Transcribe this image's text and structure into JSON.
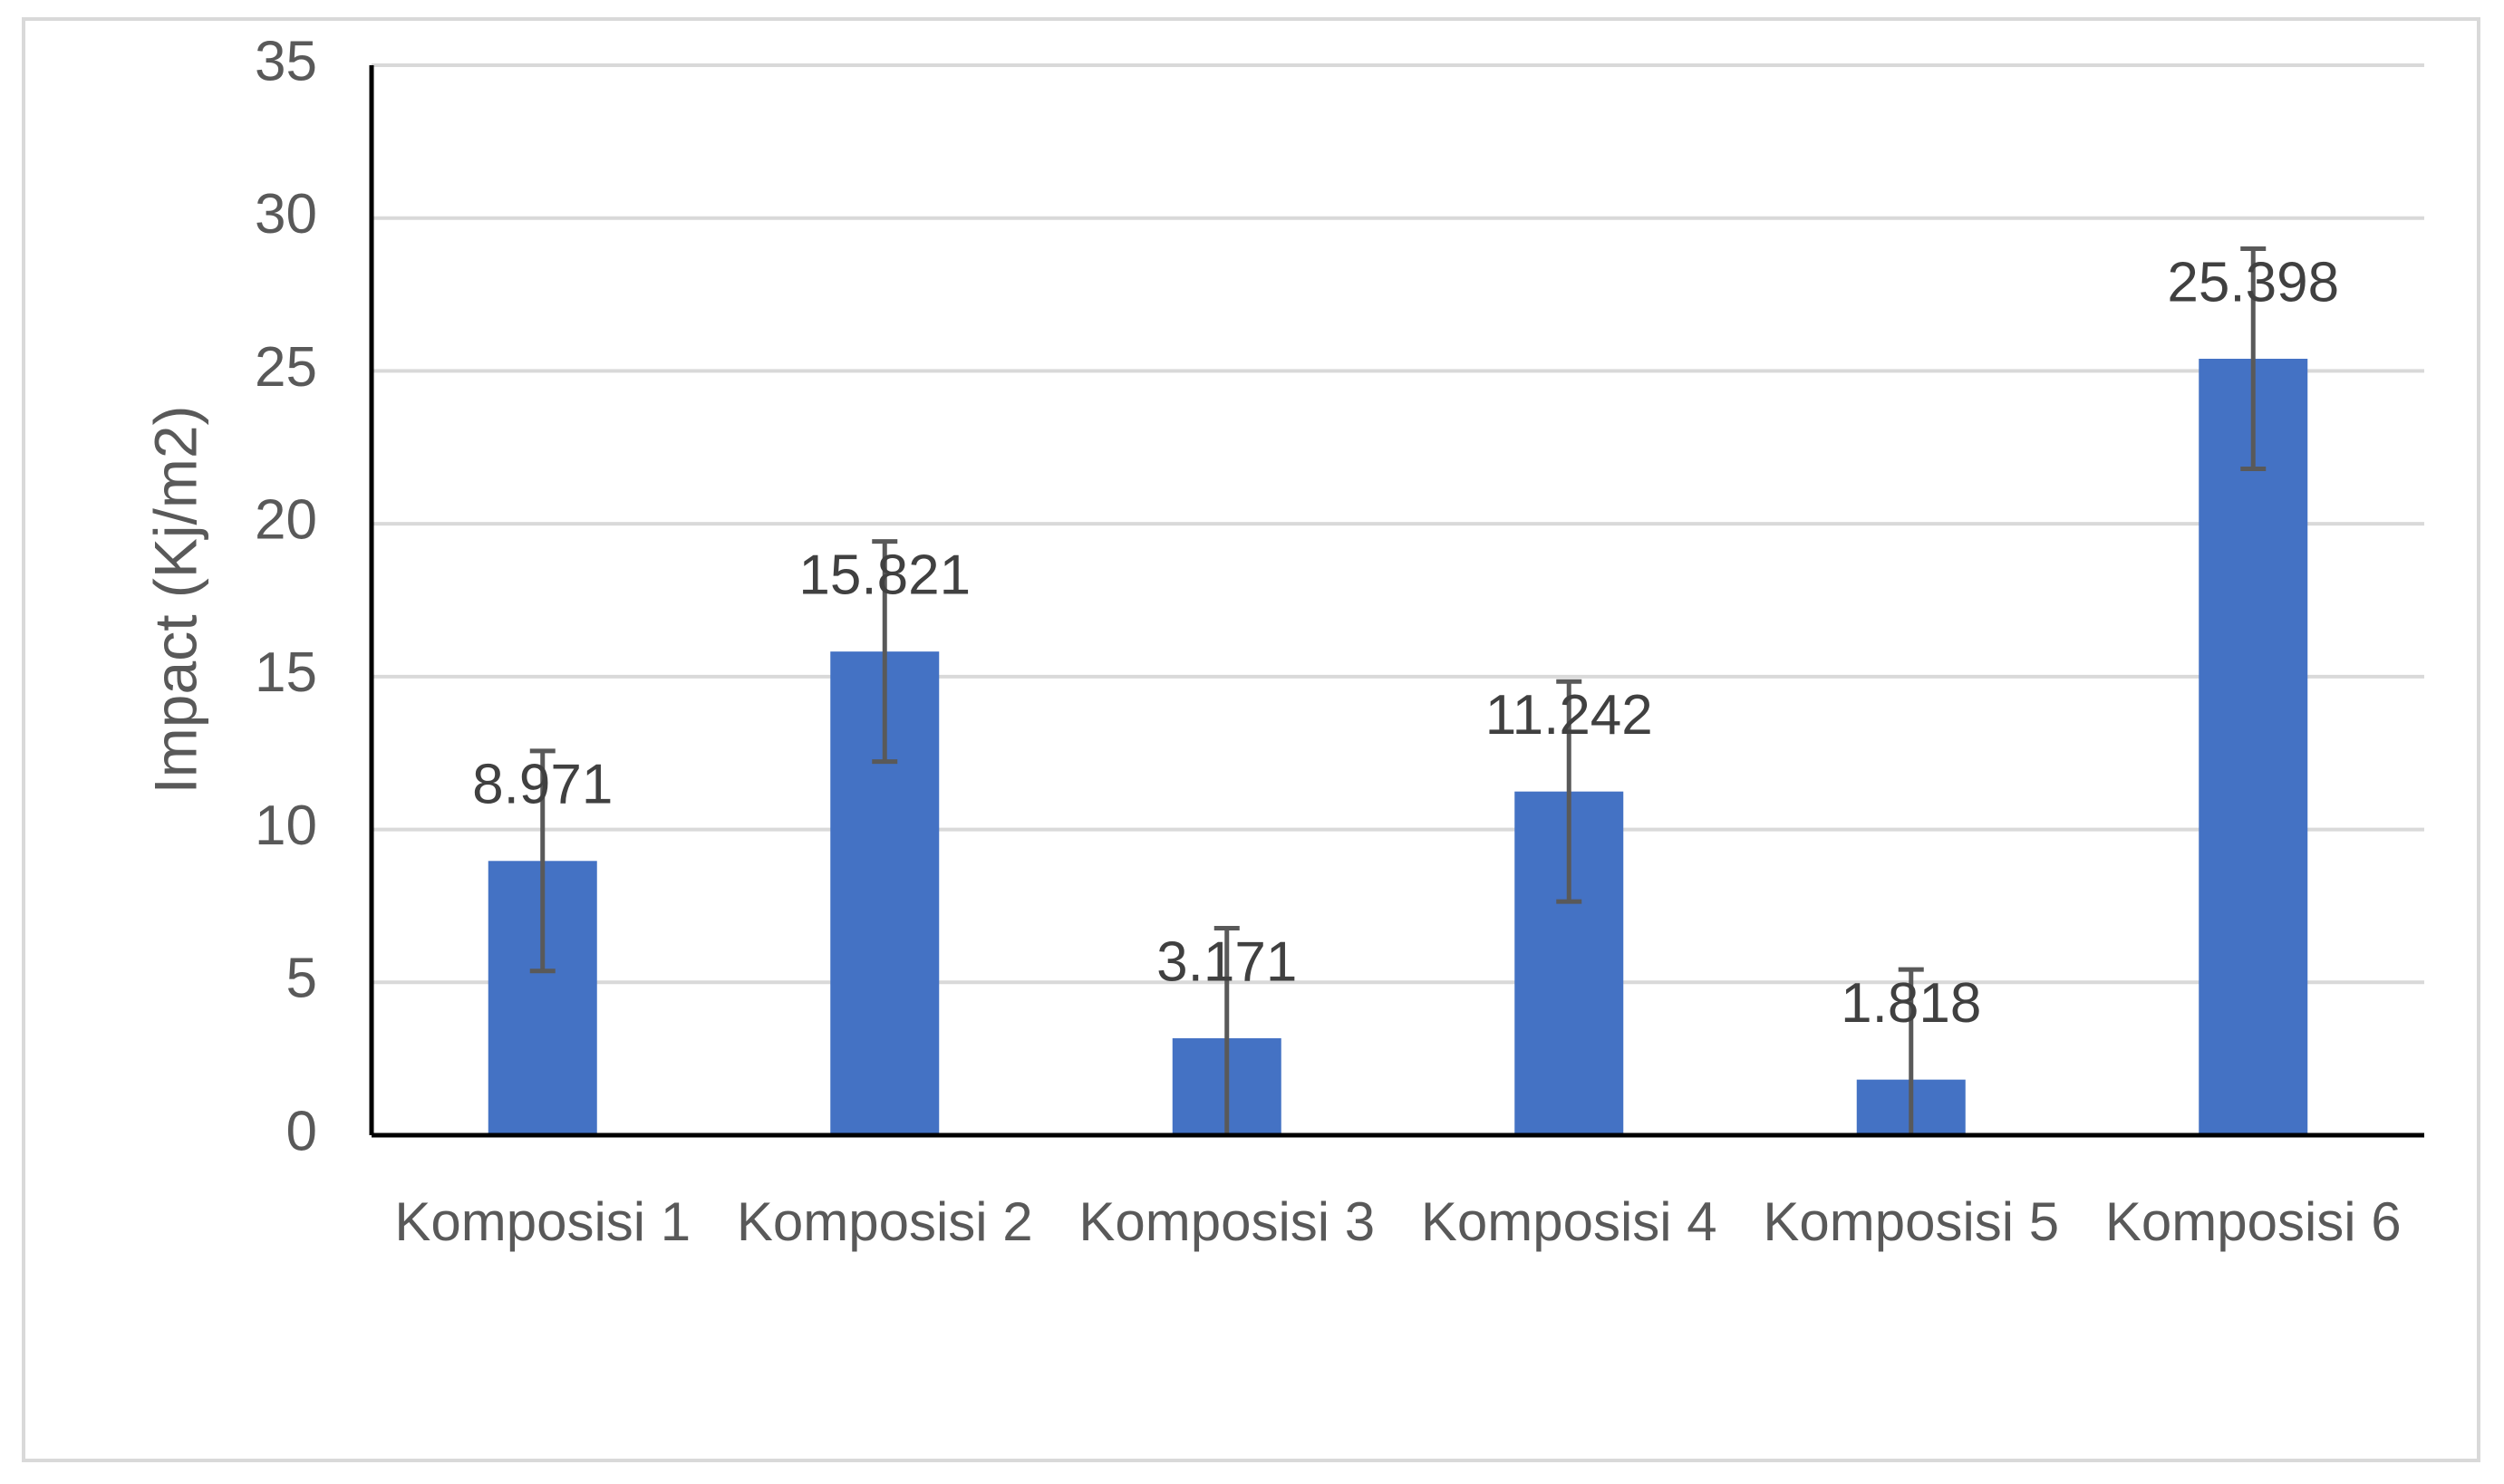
{
  "chart_data": {
    "type": "bar",
    "y_label": "Impact (Kj/m2)",
    "categories": [
      "Komposisi 1",
      "Komposisi 2",
      "Komposisi 3",
      "Komposisi 4",
      "Komposisi 5",
      "Komposisi 6"
    ],
    "values": [
      8.971,
      15.821,
      3.171,
      11.242,
      1.818,
      25.398
    ],
    "errors": [
      3.6,
      3.6,
      3.6,
      3.6,
      3.6,
      3.6
    ],
    "color": "#4472c4",
    "ylim": [
      0,
      35
    ],
    "yticks": [
      0,
      5,
      10,
      15,
      20,
      25,
      30,
      35
    ],
    "grid": true
  }
}
